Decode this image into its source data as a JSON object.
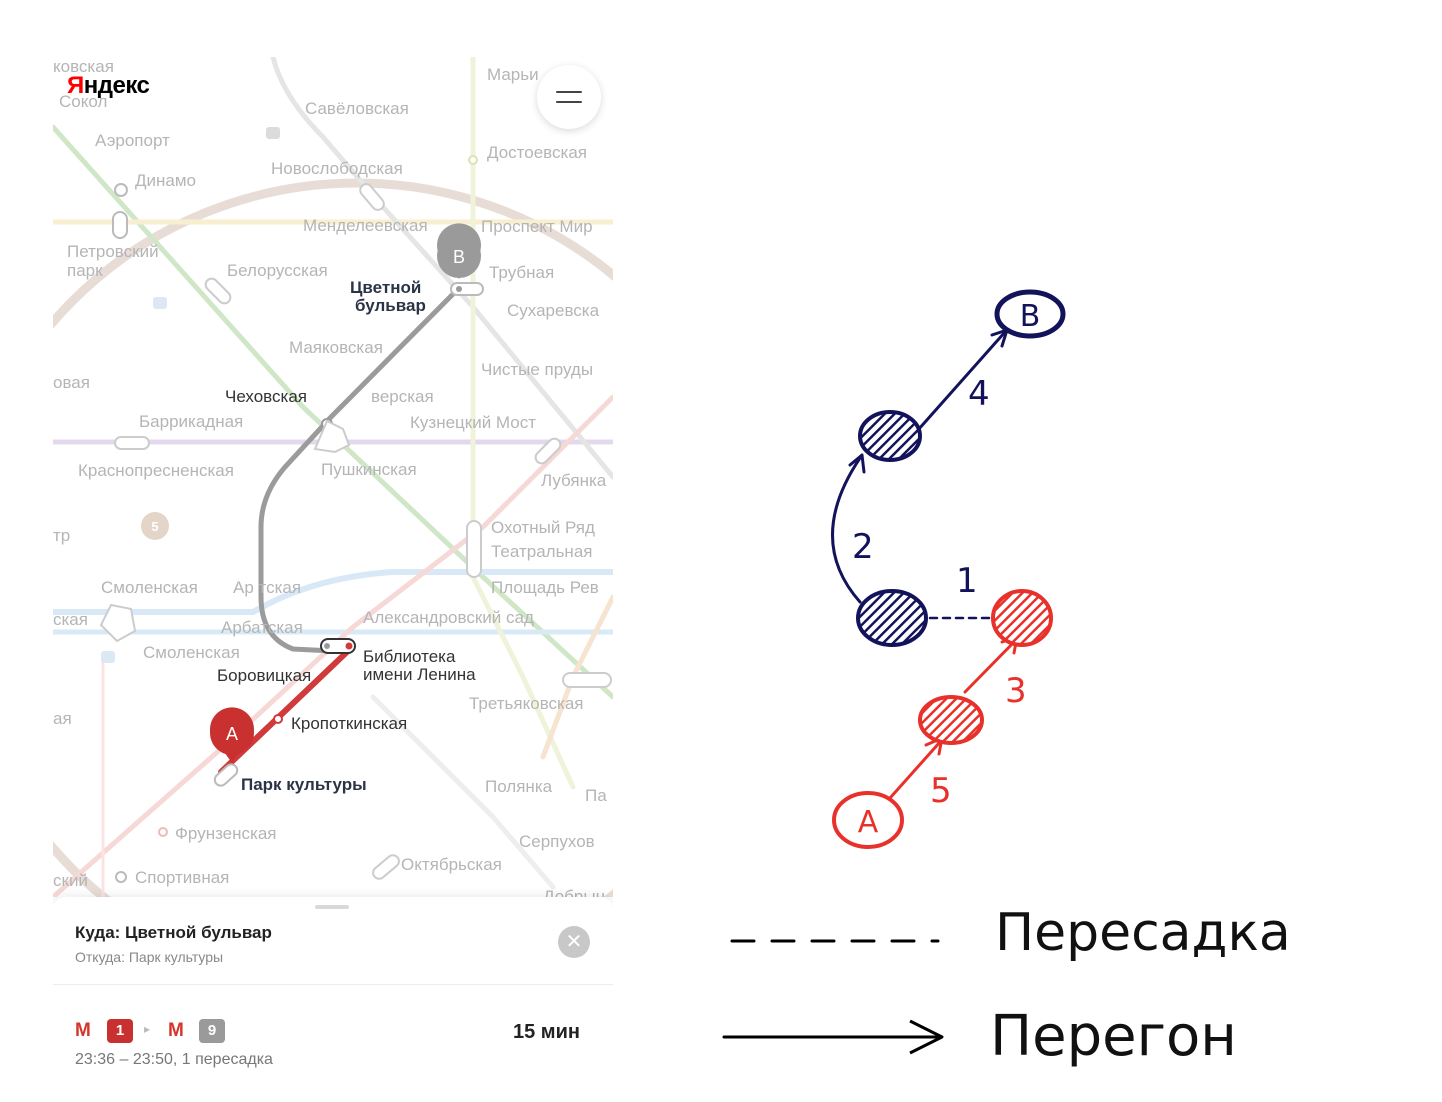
{
  "map": {
    "logo": "Яндекс",
    "logo_colors": {
      "first": "#ff0000",
      "rest": "#000000"
    },
    "stations": [
      {
        "id": "kovskaya",
        "label": "ковская"
      },
      {
        "id": "sokol",
        "label": "Сокол"
      },
      {
        "id": "savelovskaya",
        "label": "Савёловская"
      },
      {
        "id": "maryina",
        "label": "Марьи"
      },
      {
        "id": "aeroport",
        "label": "Аэропорт"
      },
      {
        "id": "dostoevskaya",
        "label": "Достоевская"
      },
      {
        "id": "dinamo",
        "label": "Динамо"
      },
      {
        "id": "novoslobodskaya",
        "label": "Новослободская"
      },
      {
        "id": "mendeleevskaya",
        "label": "Менделеевская"
      },
      {
        "id": "prospekt-mira",
        "label": "Проспект Мир"
      },
      {
        "id": "petrovsky-park",
        "label": "Петровский"
      },
      {
        "id": "petrovsky-park-2",
        "label": "парк"
      },
      {
        "id": "belorusskaya",
        "label": "Белорусская"
      },
      {
        "id": "trubnaya",
        "label": "Трубная"
      },
      {
        "id": "sukharevskaya",
        "label": "Сухаревска"
      },
      {
        "id": "mayakovskaya",
        "label": "Маяковская"
      },
      {
        "id": "chistye-prudy",
        "label": "Чистые пруды"
      },
      {
        "id": "ovaya",
        "label": "овая"
      },
      {
        "id": "chekhovskaya",
        "label": "Чеховская"
      },
      {
        "id": "tverskaya",
        "label": "верская"
      },
      {
        "id": "barrikadnaya",
        "label": "Баррикадная"
      },
      {
        "id": "kuznetsky-most",
        "label": "Кузнецкий Мост"
      },
      {
        "id": "krasnopresnenskaya",
        "label": "Краснопресненская"
      },
      {
        "id": "pushkinskaya",
        "label": "Пушкинская"
      },
      {
        "id": "lubyanka",
        "label": "Лубянка"
      },
      {
        "id": "okhotny-ryad",
        "label": "Охотный Ряд"
      },
      {
        "id": "teatralnaya",
        "label": "Театральная"
      },
      {
        "id": "tr",
        "label": "тр"
      },
      {
        "id": "smolenskaya-1",
        "label": "Смоленская"
      },
      {
        "id": "arbatskaya-1",
        "label": "Ар   тская"
      },
      {
        "id": "ploshchad-rev",
        "label": "Площадь Рев"
      },
      {
        "id": "kaya",
        "label": "ская"
      },
      {
        "id": "arbatskaya-2",
        "label": "Арбатская"
      },
      {
        "id": "alexandrovsky-sad",
        "label": "Александровский сад"
      },
      {
        "id": "smolenskaya-2",
        "label": "Смоленская"
      },
      {
        "id": "borovitskaya",
        "label": "Боровицкая"
      },
      {
        "id": "tretyakovskaya",
        "label": "Третьяковская"
      },
      {
        "id": "aya",
        "label": "ая"
      },
      {
        "id": "kropotkinskaya",
        "label": "Кропоткинская"
      },
      {
        "id": "polyanka",
        "label": "Полянка"
      },
      {
        "id": "pa",
        "label": "Па"
      },
      {
        "id": "frunzenskaya",
        "label": "Фрунзенская"
      },
      {
        "id": "serpukhovskaya",
        "label": "Серпухов"
      },
      {
        "id": "oktyabrskaya",
        "label": "Октябрьская"
      },
      {
        "id": "sky",
        "label": "ский"
      },
      {
        "id": "sportivnaya",
        "label": "Спортивная"
      },
      {
        "id": "dobryn",
        "label": "Добрын"
      }
    ],
    "route_destination_label": [
      "Цветной",
      "бульвар"
    ],
    "route_origin_label": "Парк культуры",
    "lenin_library_label": [
      "Библиотека",
      "имени Ленина"
    ],
    "marker_a": "A",
    "marker_b": "B",
    "line_5_badge": "5",
    "colors": {
      "red_line": "#d13a3a",
      "grey_line": "#9b9b9b",
      "marker_a": "#c8312f",
      "marker_b": "#9a9a9a"
    }
  },
  "sheet": {
    "destination": "Куда: Цветной бульвар",
    "origin": "Откуда: Парк культуры",
    "close_glyph": "✕",
    "route": {
      "metro_glyph": "М",
      "line_1": "1",
      "line_9": "9",
      "arrow": "▸",
      "times": "23:36 – 23:50, 1 пересадка",
      "duration": "15 мин",
      "line_1_color": "#c8312f",
      "line_9_color": "#9a9a9a"
    }
  },
  "diagram": {
    "node_b": "B",
    "node_a": "A",
    "edge_labels": {
      "e4": "4",
      "e2": "2",
      "e1": "1",
      "e3": "3",
      "e5": "5"
    },
    "colors": {
      "navy": "#13135c",
      "red": "#e8312a"
    }
  },
  "legend": {
    "transfer": "Пересадка",
    "segment": "Перегон"
  }
}
